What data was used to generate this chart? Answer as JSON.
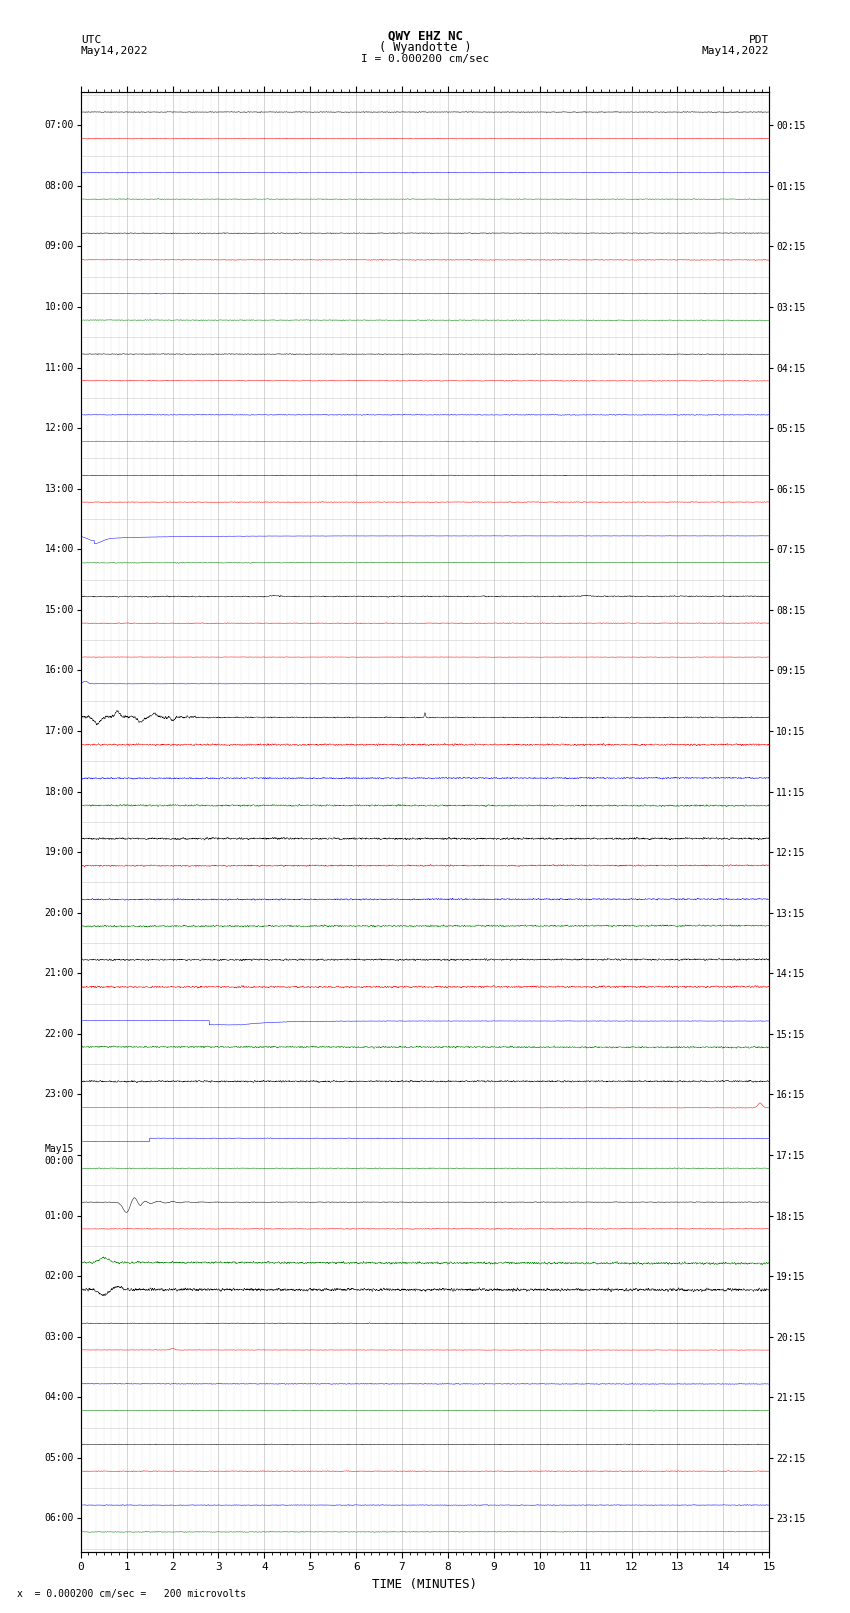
{
  "title_line1": "QWY EHZ NC",
  "title_line2": "( Wyandotte )",
  "scale_label": "I = 0.000200 cm/sec",
  "utc_label": "UTC",
  "utc_date": "May14,2022",
  "pdt_label": "PDT",
  "pdt_date": "May14,2022",
  "bottom_label": "x  = 0.000200 cm/sec =   200 microvolts",
  "xlabel": "TIME (MINUTES)",
  "xlim": [
    0,
    15
  ],
  "xticks": [
    0,
    1,
    2,
    3,
    4,
    5,
    6,
    7,
    8,
    9,
    10,
    11,
    12,
    13,
    14,
    15
  ],
  "left_times": [
    "07:00",
    "08:00",
    "09:00",
    "10:00",
    "11:00",
    "12:00",
    "13:00",
    "14:00",
    "15:00",
    "16:00",
    "17:00",
    "18:00",
    "19:00",
    "20:00",
    "21:00",
    "22:00",
    "23:00",
    "May15\n00:00",
    "01:00",
    "02:00",
    "03:00",
    "04:00",
    "05:00",
    "06:00"
  ],
  "right_times": [
    "00:15",
    "01:15",
    "02:15",
    "03:15",
    "04:15",
    "05:15",
    "06:15",
    "07:15",
    "08:15",
    "09:15",
    "10:15",
    "11:15",
    "12:15",
    "13:15",
    "14:15",
    "15:15",
    "16:15",
    "17:15",
    "18:15",
    "19:15",
    "20:15",
    "21:15",
    "22:15",
    "23:15"
  ],
  "n_rows": 24,
  "traces_per_row": 2,
  "bg_color": "#ffffff",
  "grid_color": "#aaaaaa",
  "trace_colors_pattern": [
    "black",
    "red",
    "blue",
    "green"
  ],
  "fig_width": 8.5,
  "fig_height": 16.13,
  "dpi": 100
}
